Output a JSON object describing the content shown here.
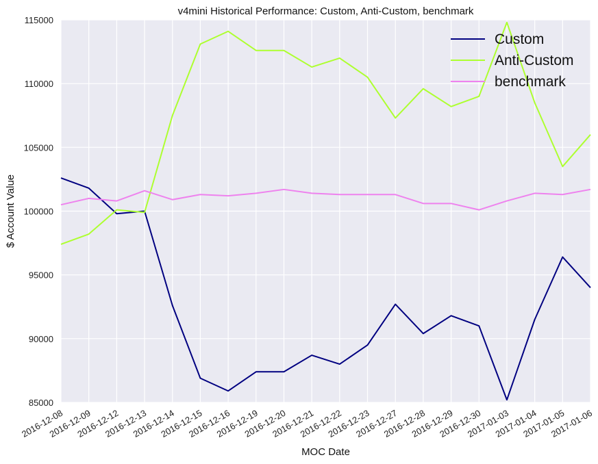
{
  "chart_data": {
    "type": "line",
    "title": "v4mini Historical Performance: Custom, Anti-Custom, benchmark",
    "xlabel": "MOC Date",
    "ylabel": "$ Account Value",
    "ylim": [
      85000,
      115000
    ],
    "yticks": [
      85000,
      90000,
      95000,
      100000,
      105000,
      110000,
      115000
    ],
    "grid": true,
    "legend_position": "top-right",
    "categories": [
      "2016-12-08",
      "2016-12-09",
      "2016-12-12",
      "2016-12-13",
      "2016-12-14",
      "2016-12-15",
      "2016-12-16",
      "2016-12-19",
      "2016-12-20",
      "2016-12-21",
      "2016-12-22",
      "2016-12-23",
      "2016-12-27",
      "2016-12-28",
      "2016-12-29",
      "2016-12-30",
      "2017-01-03",
      "2017-01-04",
      "2017-01-05",
      "2017-01-06"
    ],
    "series": [
      {
        "name": "Custom",
        "color": "#000080",
        "values": [
          102600,
          101800,
          99800,
          100000,
          92600,
          86900,
          85900,
          87400,
          87400,
          88700,
          88000,
          89500,
          92700,
          90400,
          91800,
          91000,
          85200,
          91500,
          96400,
          94000
        ]
      },
      {
        "name": "Anti-Custom",
        "color": "#adff2f",
        "values": [
          97400,
          98200,
          100100,
          99900,
          107500,
          113100,
          114100,
          112600,
          112600,
          111300,
          112000,
          110500,
          107300,
          109600,
          108200,
          109000,
          114800,
          108500,
          103500,
          106000
        ]
      },
      {
        "name": "benchmark",
        "color": "#ee82ee",
        "values": [
          100500,
          101000,
          100800,
          101600,
          100900,
          101300,
          101200,
          101400,
          101700,
          101400,
          101300,
          101300,
          101300,
          100600,
          100600,
          100100,
          100800,
          101400,
          101300,
          101700
        ]
      }
    ]
  }
}
